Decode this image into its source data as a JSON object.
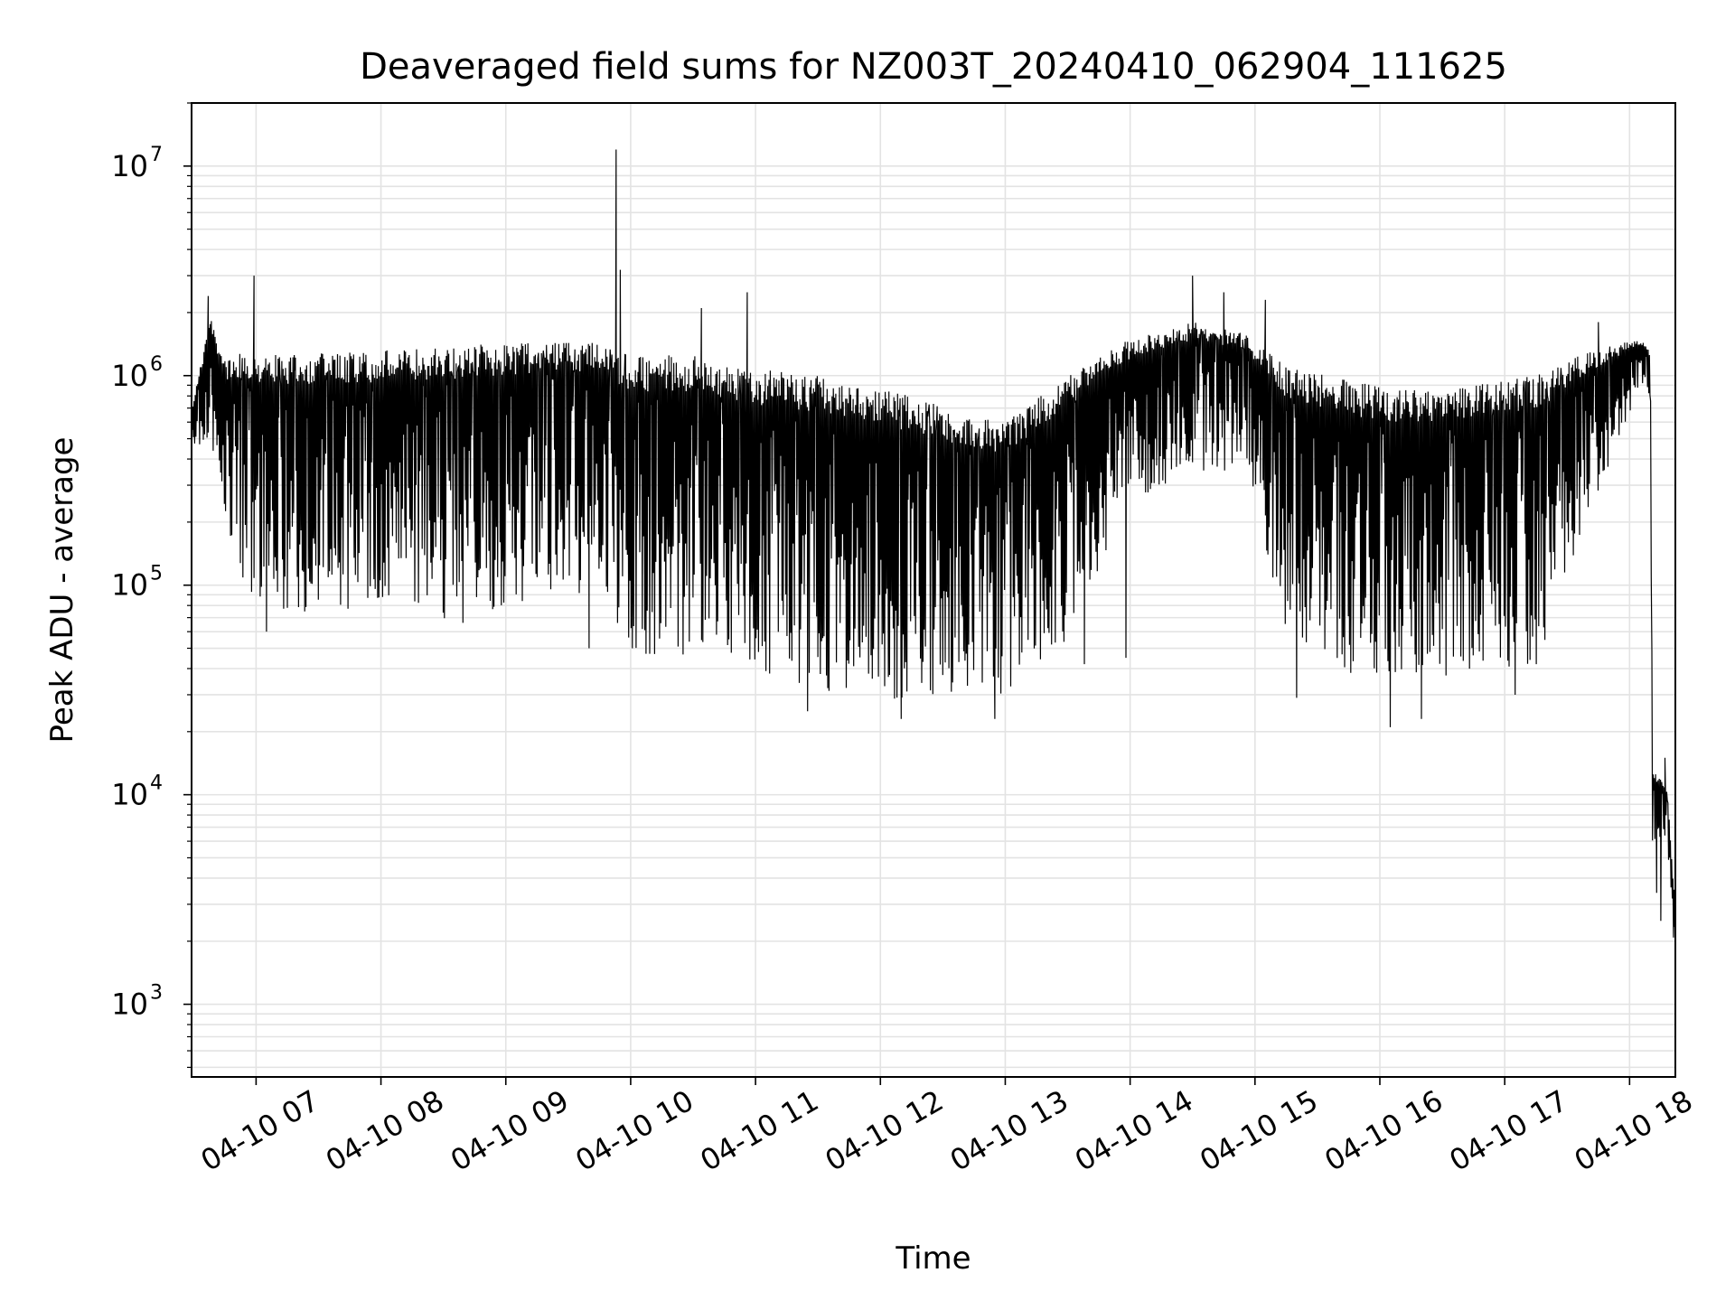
{
  "chart_data": {
    "type": "line",
    "title": "Deaveraged field sums for NZ003T_20240410_062904_111625",
    "xlabel": "Time",
    "ylabel": "Peak ADU - average",
    "xaxis": {
      "kind": "time",
      "range": [
        "2024-04-10 06:29",
        "2024-04-10 18:22"
      ],
      "ticks": [
        {
          "time": "2024-04-10 07:00",
          "label": "04-10 07"
        },
        {
          "time": "2024-04-10 08:00",
          "label": "04-10 08"
        },
        {
          "time": "2024-04-10 09:00",
          "label": "04-10 09"
        },
        {
          "time": "2024-04-10 10:00",
          "label": "04-10 10"
        },
        {
          "time": "2024-04-10 11:00",
          "label": "04-10 11"
        },
        {
          "time": "2024-04-10 12:00",
          "label": "04-10 12"
        },
        {
          "time": "2024-04-10 13:00",
          "label": "04-10 13"
        },
        {
          "time": "2024-04-10 14:00",
          "label": "04-10 14"
        },
        {
          "time": "2024-04-10 15:00",
          "label": "04-10 15"
        },
        {
          "time": "2024-04-10 16:00",
          "label": "04-10 16"
        },
        {
          "time": "2024-04-10 17:00",
          "label": "04-10 17"
        },
        {
          "time": "2024-04-10 18:00",
          "label": "04-10 18"
        }
      ]
    },
    "yaxis": {
      "scale": "log",
      "range": [
        450,
        20000000
      ],
      "ticks": [
        {
          "value": 1000,
          "base": "10",
          "exp": "3"
        },
        {
          "value": 10000,
          "base": "10",
          "exp": "4"
        },
        {
          "value": 100000,
          "base": "10",
          "exp": "5"
        },
        {
          "value": 1000000,
          "base": "10",
          "exp": "6"
        },
        {
          "value": 10000000,
          "base": "10",
          "exp": "7"
        }
      ]
    },
    "grid": true,
    "series": [
      {
        "color": "#000000",
        "envelope": [
          {
            "time": "2024-04-10 06:29",
            "low": 420000,
            "high": 700000
          },
          {
            "time": "2024-04-10 06:38",
            "low": 500000,
            "high": 1900000
          },
          {
            "time": "2024-04-10 06:45",
            "low": 190000,
            "high": 1200000
          },
          {
            "time": "2024-04-10 06:55",
            "low": 95000,
            "high": 1300000
          },
          {
            "time": "2024-04-10 07:15",
            "low": 75000,
            "high": 1250000
          },
          {
            "time": "2024-04-10 07:45",
            "low": 70000,
            "high": 1300000
          },
          {
            "time": "2024-04-10 08:15",
            "low": 70000,
            "high": 1350000
          },
          {
            "time": "2024-04-10 08:45",
            "low": 65000,
            "high": 1400000
          },
          {
            "time": "2024-04-10 09:15",
            "low": 80000,
            "high": 1450000
          },
          {
            "time": "2024-04-10 09:45",
            "low": 90000,
            "high": 1450000
          },
          {
            "time": "2024-04-10 10:00",
            "low": 45000,
            "high": 1250000
          },
          {
            "time": "2024-04-10 10:30",
            "low": 45000,
            "high": 1250000
          },
          {
            "time": "2024-04-10 10:45",
            "low": 50000,
            "high": 1100000
          },
          {
            "time": "2024-04-10 11:15",
            "low": 32000,
            "high": 1050000
          },
          {
            "time": "2024-04-10 11:45",
            "low": 30000,
            "high": 950000
          },
          {
            "time": "2024-04-10 12:15",
            "low": 28000,
            "high": 800000
          },
          {
            "time": "2024-04-10 12:45",
            "low": 28000,
            "high": 650000
          },
          {
            "time": "2024-04-10 13:00",
            "low": 30000,
            "high": 600000
          },
          {
            "time": "2024-04-10 13:30",
            "low": 55000,
            "high": 1000000
          },
          {
            "time": "2024-04-10 14:00",
            "low": 250000,
            "high": 1500000
          },
          {
            "time": "2024-04-10 14:30",
            "low": 350000,
            "high": 1800000
          },
          {
            "time": "2024-04-10 14:55",
            "low": 350000,
            "high": 1600000
          },
          {
            "time": "2024-04-10 15:15",
            "low": 60000,
            "high": 1100000
          },
          {
            "time": "2024-04-10 15:45",
            "low": 38000,
            "high": 950000
          },
          {
            "time": "2024-04-10 16:15",
            "low": 35000,
            "high": 850000
          },
          {
            "time": "2024-04-10 16:45",
            "low": 38000,
            "high": 900000
          },
          {
            "time": "2024-04-10 17:15",
            "low": 40000,
            "high": 1000000
          },
          {
            "time": "2024-04-10 17:40",
            "low": 200000,
            "high": 1300000
          },
          {
            "time": "2024-04-10 18:05",
            "low": 900000,
            "high": 1500000
          },
          {
            "time": "2024-04-10 18:10",
            "low": 800000,
            "high": 1300000
          },
          {
            "time": "2024-04-10 18:11",
            "low": 6000,
            "high": 13000
          },
          {
            "time": "2024-04-10 18:18",
            "low": 6000,
            "high": 11000
          },
          {
            "time": "2024-04-10 18:22",
            "low": 1000,
            "high": 3000
          }
        ],
        "spikes": [
          {
            "time": "2024-04-10 06:37",
            "value": 2400000
          },
          {
            "time": "2024-04-10 06:59",
            "value": 3000000
          },
          {
            "time": "2024-04-10 07:05",
            "value": 60000
          },
          {
            "time": "2024-04-10 09:40",
            "value": 50000
          },
          {
            "time": "2024-04-10 09:53",
            "value": 12000000
          },
          {
            "time": "2024-04-10 09:55",
            "value": 3200000
          },
          {
            "time": "2024-04-10 10:34",
            "value": 2100000
          },
          {
            "time": "2024-04-10 10:56",
            "value": 2500000
          },
          {
            "time": "2024-04-10 11:25",
            "value": 25000
          },
          {
            "time": "2024-04-10 12:10",
            "value": 23000
          },
          {
            "time": "2024-04-10 12:55",
            "value": 23000
          },
          {
            "time": "2024-04-10 13:38",
            "value": 42000
          },
          {
            "time": "2024-04-10 13:58",
            "value": 45000
          },
          {
            "time": "2024-04-10 14:30",
            "value": 3000000
          },
          {
            "time": "2024-04-10 14:45",
            "value": 2500000
          },
          {
            "time": "2024-04-10 15:05",
            "value": 2300000
          },
          {
            "time": "2024-04-10 15:20",
            "value": 29000
          },
          {
            "time": "2024-04-10 16:05",
            "value": 21000
          },
          {
            "time": "2024-04-10 16:20",
            "value": 23000
          },
          {
            "time": "2024-04-10 17:05",
            "value": 30000
          },
          {
            "time": "2024-04-10 17:45",
            "value": 1800000
          },
          {
            "time": "2024-04-10 18:15",
            "value": 2500
          },
          {
            "time": "2024-04-10 18:13",
            "value": 3400
          },
          {
            "time": "2024-04-10 18:17",
            "value": 15000
          }
        ]
      }
    ]
  }
}
